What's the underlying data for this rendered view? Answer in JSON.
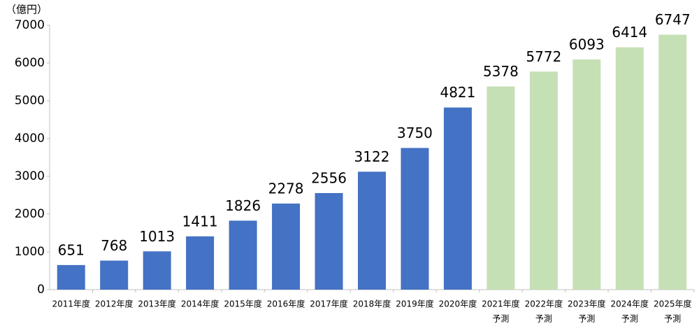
{
  "chart_data": {
    "type": "bar",
    "y_label": "（億円）",
    "categories": [
      "2011年度",
      "2012年度",
      "2013年度",
      "2014年度",
      "2015年度",
      "2016年度",
      "2017年度",
      "2018年度",
      "2019年度",
      "2020年度",
      "2021年度",
      "2022年度",
      "2023年度",
      "2024年度",
      "2025年度"
    ],
    "category_sublabels": [
      null,
      null,
      null,
      null,
      null,
      null,
      null,
      null,
      null,
      null,
      "予測",
      "予測",
      "予測",
      "予測",
      "予測"
    ],
    "values": [
      651,
      768,
      1013,
      1411,
      1826,
      2278,
      2556,
      3122,
      3750,
      4821,
      5378,
      5772,
      6093,
      6414,
      6747
    ],
    "colors": [
      "#4472c4",
      "#4472c4",
      "#4472c4",
      "#4472c4",
      "#4472c4",
      "#4472c4",
      "#4472c4",
      "#4472c4",
      "#4472c4",
      "#4472c4",
      "#c5e0b4",
      "#c5e0b4",
      "#c5e0b4",
      "#c5e0b4",
      "#c5e0b4"
    ],
    "ylim": [
      0,
      7000
    ],
    "yticks": [
      0,
      1000,
      2000,
      3000,
      4000,
      5000,
      6000,
      7000
    ],
    "grid": false
  }
}
